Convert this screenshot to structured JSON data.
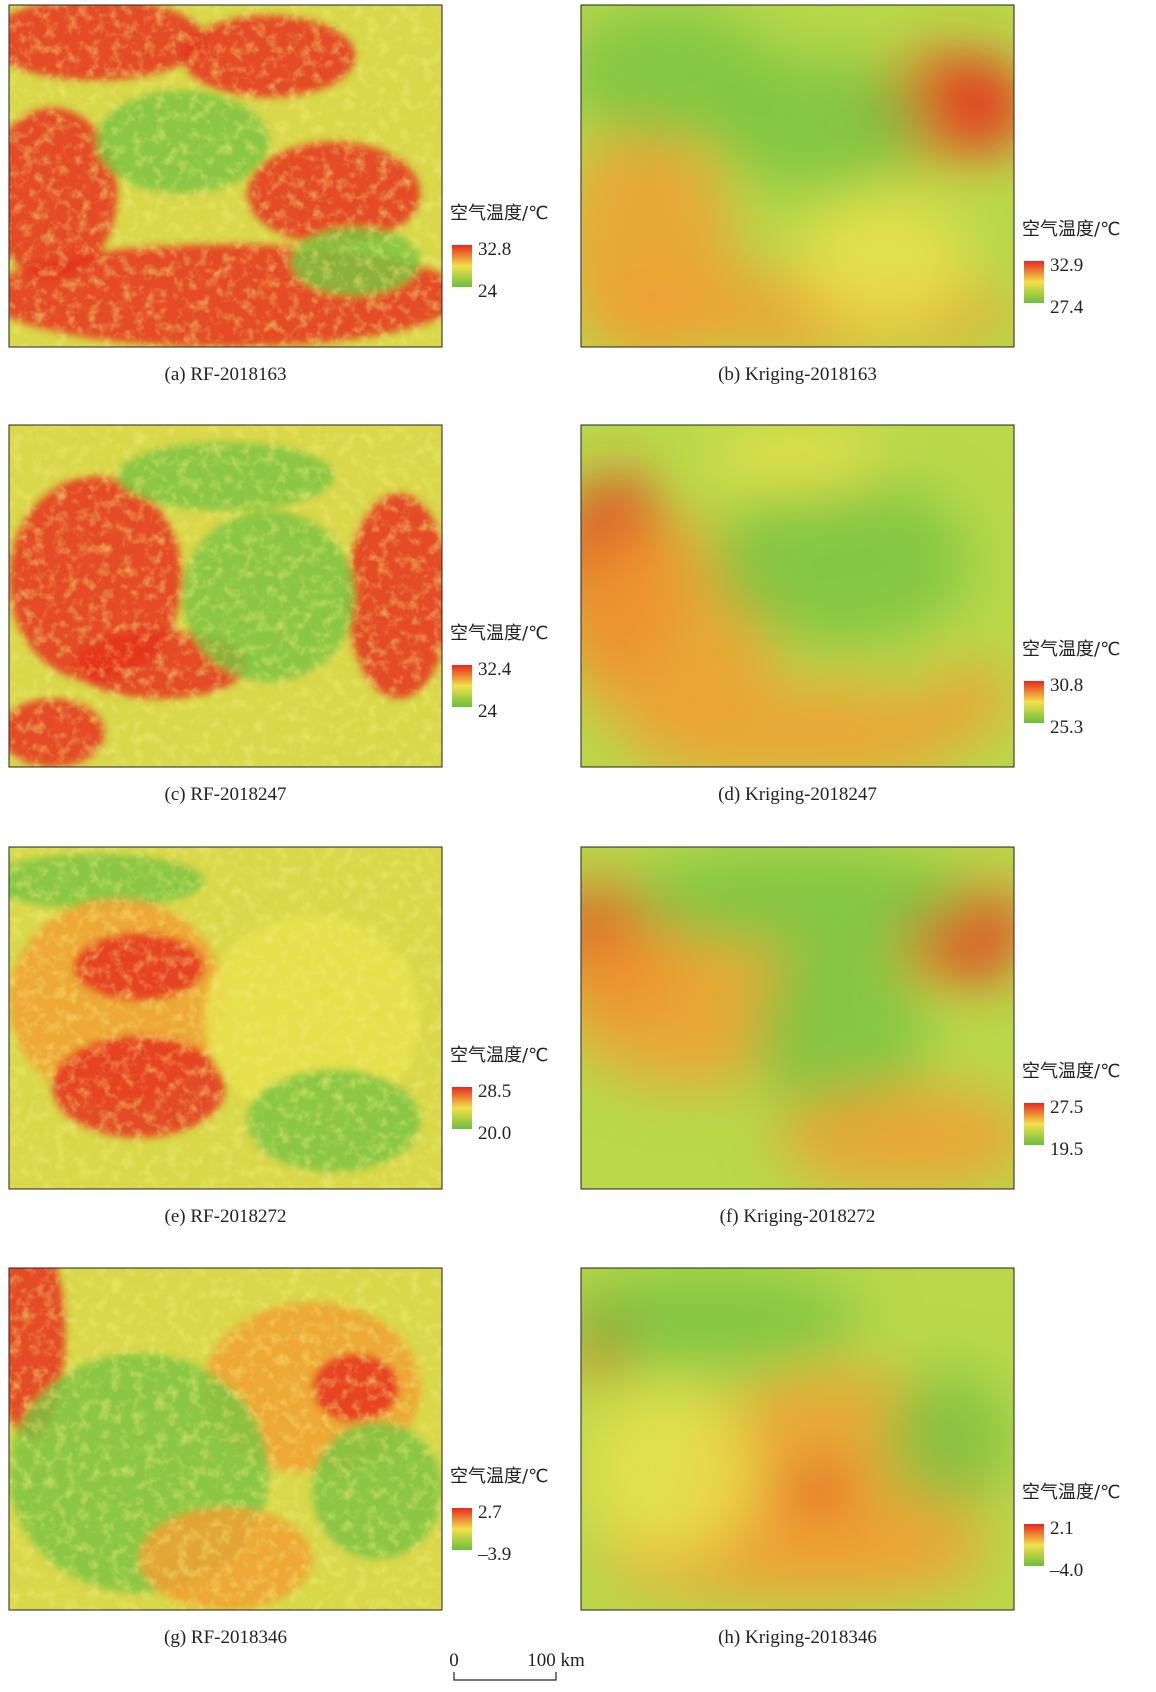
{
  "panels": [
    {
      "caption": "(a) RF-2018163",
      "legend_title": "空气温度/℃",
      "max": "32.8",
      "min": "24"
    },
    {
      "caption": "(b) Kriging-2018163",
      "legend_title": "空气温度/℃",
      "max": "32.9",
      "min": "27.4"
    },
    {
      "caption": "(c) RF-2018247",
      "legend_title": "空气温度/℃",
      "max": "32.4",
      "min": "24"
    },
    {
      "caption": "(d) Kriging-2018247",
      "legend_title": "空气温度/℃",
      "max": "30.8",
      "min": "25.3"
    },
    {
      "caption": "(e) RF-2018272",
      "legend_title": "空气温度/℃",
      "max": "28.5",
      "min": "20.0"
    },
    {
      "caption": "(f) Kriging-2018272",
      "legend_title": "空气温度/℃",
      "max": "27.5",
      "min": "19.5"
    },
    {
      "caption": "(g) RF-2018346",
      "legend_title": "空气温度/℃",
      "max": "2.7",
      "min": "–3.9"
    },
    {
      "caption": "(h) Kriging-2018346",
      "legend_title": "空气温度/℃",
      "max": "2.1",
      "min": "–4.0"
    }
  ],
  "scale_bar": {
    "start": "0",
    "end": "100 km"
  }
}
